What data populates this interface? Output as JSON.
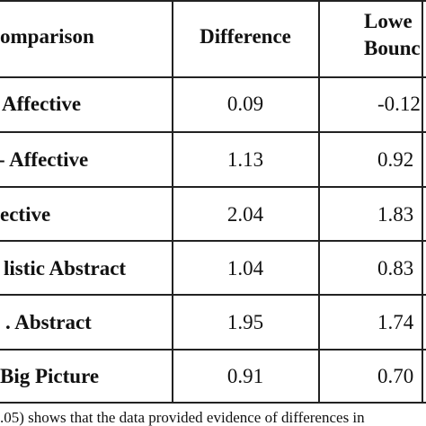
{
  "table": {
    "header": [
      "omparison",
      "Difference",
      [
        "Lowe",
        "Bounc"
      ]
    ],
    "rows": [
      [
        "Affective",
        "0.09",
        "-0.12"
      ],
      [
        "- Affective",
        "1.13",
        "0.92"
      ],
      [
        "ective",
        "2.04",
        "1.83"
      ],
      [
        "listic Abstract",
        "1.04",
        "0.83"
      ],
      [
        ". Abstract",
        "1.95",
        "1.74"
      ],
      [
        "Big Picture",
        "0.91",
        "0.70"
      ]
    ]
  },
  "caption": ".05) shows that the data provided evidence of differences in"
}
